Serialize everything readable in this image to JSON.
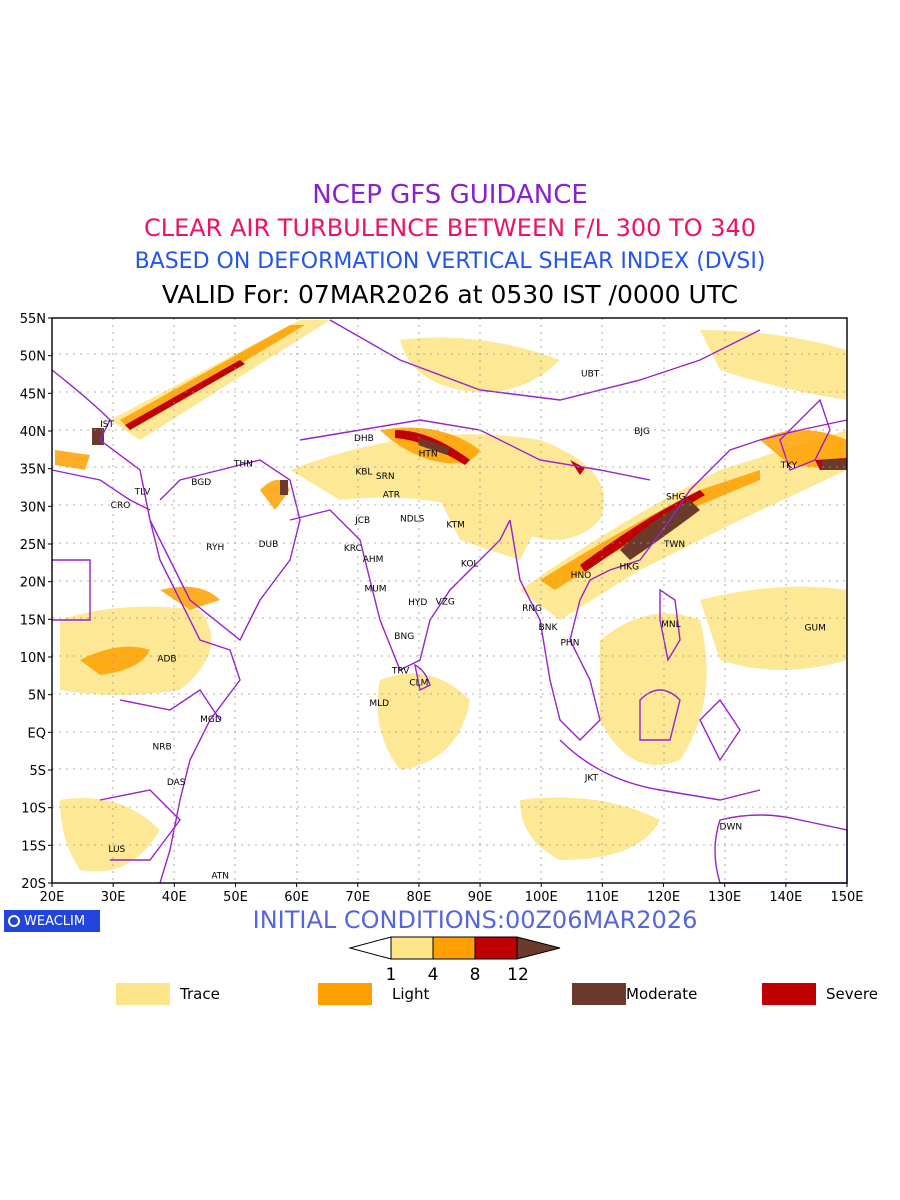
{
  "header": {
    "line1": "NCEP GFS GUIDANCE",
    "line2": "CLEAR AIR TURBULENCE BETWEEN F/L 300 TO 340",
    "line3": "BASED ON DEFORMATION VERTICAL SHEAR INDEX (DVSI)",
    "line4": "VALID For: 07MAR2026 at 0530 IST /0000 UTC"
  },
  "colors": {
    "line1": "#8822cc",
    "line2": "#ee1166",
    "line3": "#2255ee",
    "border": "#9922cc",
    "trace": "#fde68a",
    "light": "#ffa000",
    "moderate": "#6b3a2a",
    "severe": "#c00000",
    "badge": "#2244dd"
  },
  "axes": {
    "lat_labels": [
      "55N",
      "50N",
      "45N",
      "40N",
      "35N",
      "30N",
      "25N",
      "20N",
      "15N",
      "10N",
      "5N",
      "EQ",
      "5S",
      "10S",
      "15S",
      "20S"
    ],
    "lon_labels": [
      "20E",
      "30E",
      "40E",
      "50E",
      "60E",
      "70E",
      "80E",
      "90E",
      "100E",
      "110E",
      "120E",
      "130E",
      "140E",
      "150E"
    ],
    "lat_range": [
      -20,
      55
    ],
    "lon_range": [
      20,
      150
    ]
  },
  "stations": [
    {
      "code": "UBT",
      "lon": 108,
      "lat": 47.6
    },
    {
      "code": "IST",
      "lon": 29,
      "lat": 40.9
    },
    {
      "code": "BJG",
      "lon": 116.5,
      "lat": 40
    },
    {
      "code": "DHB",
      "lon": 71,
      "lat": 39.1
    },
    {
      "code": "HTN",
      "lon": 81.5,
      "lat": 37
    },
    {
      "code": "KBL",
      "lon": 71,
      "lat": 34.6
    },
    {
      "code": "SRN",
      "lon": 74.5,
      "lat": 34
    },
    {
      "code": "TKY",
      "lon": 140.5,
      "lat": 35.5
    },
    {
      "code": "THN",
      "lon": 51.3,
      "lat": 35.7
    },
    {
      "code": "BGD",
      "lon": 44.4,
      "lat": 33.2
    },
    {
      "code": "TLV",
      "lon": 34.8,
      "lat": 32
    },
    {
      "code": "CRO",
      "lon": 31.2,
      "lat": 30.2
    },
    {
      "code": "SHG",
      "lon": 122,
      "lat": 31.3
    },
    {
      "code": "ATR",
      "lon": 75.5,
      "lat": 31.6
    },
    {
      "code": "JCB",
      "lon": 70.8,
      "lat": 28.2
    },
    {
      "code": "NDLS",
      "lon": 78.9,
      "lat": 28.4
    },
    {
      "code": "KTM",
      "lon": 86,
      "lat": 27.6
    },
    {
      "code": "RYH",
      "lon": 46.7,
      "lat": 24.6
    },
    {
      "code": "DUB",
      "lon": 55.4,
      "lat": 25
    },
    {
      "code": "KRC",
      "lon": 69.2,
      "lat": 24.5
    },
    {
      "code": "AHM",
      "lon": 72.5,
      "lat": 23
    },
    {
      "code": "TWN",
      "lon": 121.8,
      "lat": 25
    },
    {
      "code": "KOL",
      "lon": 88.3,
      "lat": 22.4
    },
    {
      "code": "HNO",
      "lon": 106.5,
      "lat": 20.9
    },
    {
      "code": "HKG",
      "lon": 114.4,
      "lat": 22
    },
    {
      "code": "MUM",
      "lon": 72.9,
      "lat": 19.1
    },
    {
      "code": "HYD",
      "lon": 79.8,
      "lat": 17.3
    },
    {
      "code": "VZG",
      "lon": 84.3,
      "lat": 17.4
    },
    {
      "code": "RNG",
      "lon": 98.5,
      "lat": 16.5
    },
    {
      "code": "MNL",
      "lon": 121.2,
      "lat": 14.4
    },
    {
      "code": "GUM",
      "lon": 144.8,
      "lat": 13.9
    },
    {
      "code": "BNK",
      "lon": 101.1,
      "lat": 14
    },
    {
      "code": "BNG",
      "lon": 77.6,
      "lat": 12.8
    },
    {
      "code": "PHN",
      "lon": 104.7,
      "lat": 11.9
    },
    {
      "code": "ADB",
      "lon": 38.8,
      "lat": 9.8
    },
    {
      "code": "TRV",
      "lon": 77,
      "lat": 8.2
    },
    {
      "code": "CLM",
      "lon": 80,
      "lat": 6.6
    },
    {
      "code": "MLD",
      "lon": 73.5,
      "lat": 3.9
    },
    {
      "code": "MGD",
      "lon": 46,
      "lat": 1.8
    },
    {
      "code": "NRB",
      "lon": 38,
      "lat": -1.9
    },
    {
      "code": "JKT",
      "lon": 108.2,
      "lat": -6
    },
    {
      "code": "DAS",
      "lon": 40.3,
      "lat": -6.6
    },
    {
      "code": "DWN",
      "lon": 131,
      "lat": -12.5
    },
    {
      "code": "LUS",
      "lon": 30.6,
      "lat": -15.5
    },
    {
      "code": "ATN",
      "lon": 47.5,
      "lat": -19
    }
  ],
  "footer": {
    "badge": "WEACLIM",
    "initial_conditions": "INITIAL CONDITIONS:00Z06MAR2026",
    "colorbar_ticks": [
      "1",
      "4",
      "8",
      "12"
    ],
    "legend": [
      "Trace",
      "Light",
      "Moderate",
      "Severe"
    ]
  }
}
